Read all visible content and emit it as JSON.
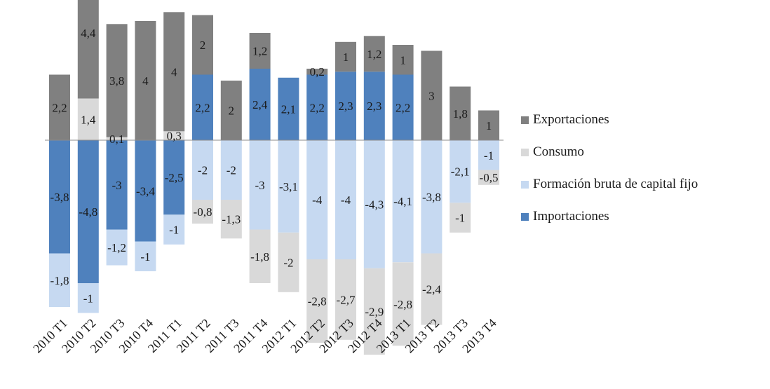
{
  "chart_data": {
    "type": "bar",
    "stacked": true,
    "title": "",
    "xlabel": "",
    "ylabel": "",
    "categories": [
      "2010 T1",
      "2010 T2",
      "2010 T3",
      "2010 T4",
      "2011 T1",
      "2011 T2",
      "2011 T3",
      "2011 T4",
      "2012 T1",
      "2012 T2",
      "2012 T3",
      "2012 T4",
      "2013 T1",
      "2013 T2",
      "2013 T3",
      "2013 T4"
    ],
    "series": [
      {
        "name": "Importaciones",
        "color": "#4f81bd",
        "values": [
          -3.8,
          -4.8,
          -3,
          -3.4,
          -2.5,
          2.2,
          0,
          2.4,
          2.1,
          2.2,
          2.3,
          2.3,
          2.2,
          0,
          0,
          0
        ],
        "labels": [
          "-3,8",
          "-4,8",
          "-3",
          "-3,4",
          "-2,5",
          "2,2",
          "",
          "2,4",
          "2,1",
          "2,2",
          "2,3",
          "2,3",
          "2,2",
          "",
          "",
          ""
        ]
      },
      {
        "name": "Formación bruta de capital fijo",
        "color": "#c6d9f1",
        "values": [
          -1.8,
          -1,
          -1.2,
          -1,
          -1,
          -2,
          -2,
          -3,
          -3.1,
          -4,
          -4,
          -4.3,
          -4.1,
          -3.8,
          -2.1,
          -1
        ],
        "labels": [
          "-1,8",
          "-1",
          "-1,2",
          "-1",
          "-1",
          "-2",
          "-2",
          "-3",
          "-3,1",
          "-4",
          "-4",
          "-4,3",
          "-4,1",
          "-3,8",
          "-2,1",
          "-1"
        ]
      },
      {
        "name": "Consumo",
        "color": "#d9d9d9",
        "values": [
          0,
          1.4,
          0.1,
          0,
          0.3,
          -0.8,
          -1.3,
          -1.8,
          -2,
          -2.8,
          -2.7,
          -2.9,
          -2.8,
          -2.4,
          -1,
          -0.5
        ],
        "labels": [
          "",
          "1,4",
          "0,1",
          "",
          "0,3",
          "-0,8",
          "-1,3",
          "-1,8",
          "-2",
          "-2,8",
          "-2,7",
          "-2,9",
          "-2,8",
          "-2,4",
          "-1",
          "-0,5"
        ]
      },
      {
        "name": "Exportaciones",
        "color": "#808080",
        "values": [
          2.2,
          4.4,
          3.8,
          4,
          4,
          2,
          2,
          1.2,
          0,
          0.2,
          1,
          1.2,
          1,
          3,
          1.8,
          1
        ],
        "labels": [
          "2,2",
          "4,4",
          "3,8",
          "4",
          "4",
          "2",
          "2",
          "1,2",
          "",
          "0,2",
          "1",
          "1,2",
          "1",
          "3",
          "1,8",
          "1"
        ]
      }
    ],
    "legend": {
      "position": "right",
      "order": [
        "Exportaciones",
        "Consumo",
        "Formación bruta de capital fijo",
        "Importaciones"
      ]
    }
  }
}
